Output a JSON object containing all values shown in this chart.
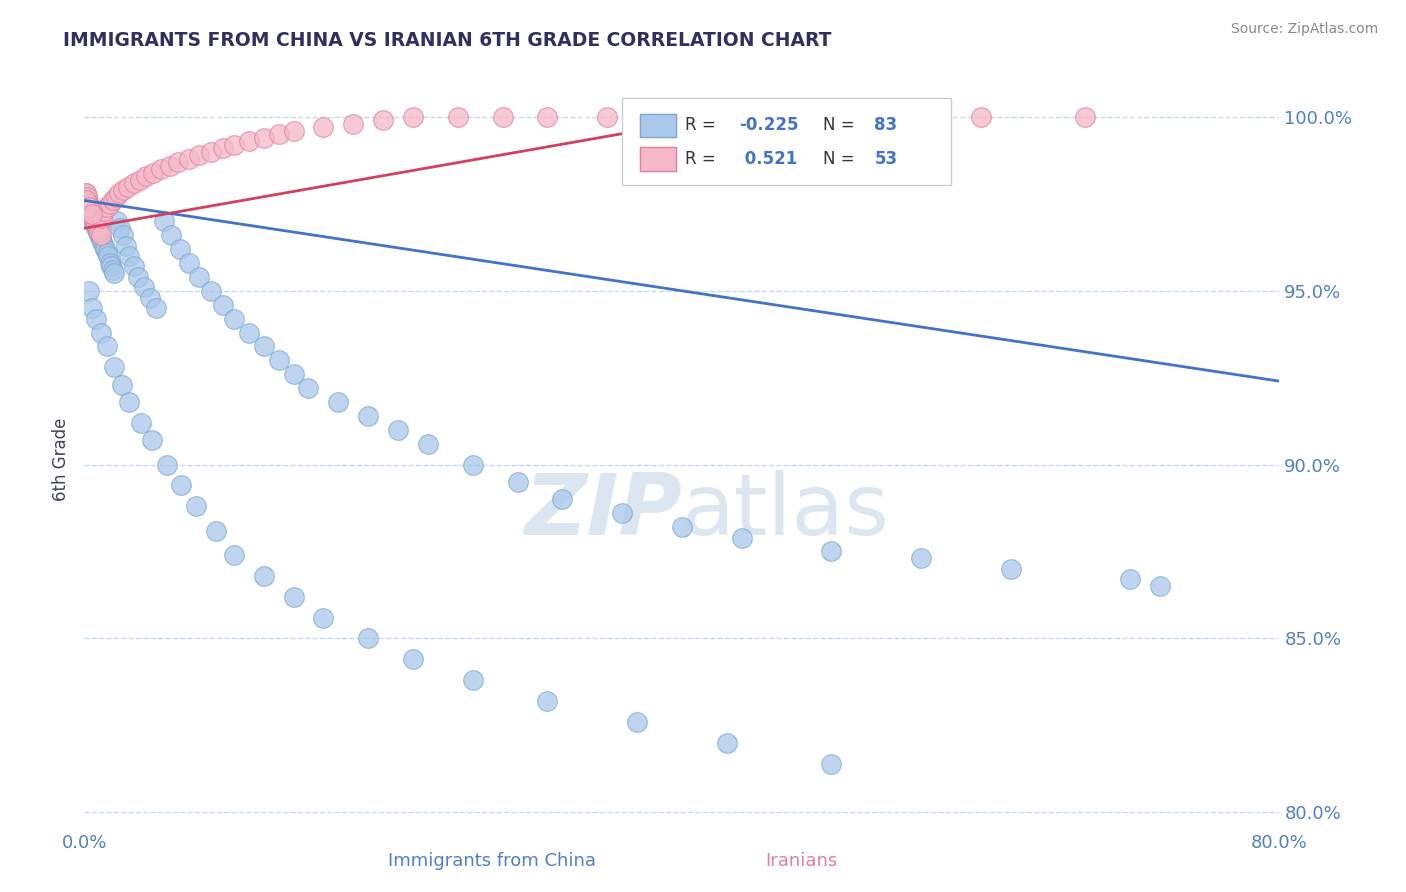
{
  "title": "IMMIGRANTS FROM CHINA VS IRANIAN 6TH GRADE CORRELATION CHART",
  "source": "Source: ZipAtlas.com",
  "xlabel_china": "Immigrants from China",
  "xlabel_iranian": "Iranians",
  "ylabel": "6th Grade",
  "xlim": [
    0.0,
    0.8
  ],
  "ylim": [
    0.795,
    1.008
  ],
  "ytick_labels": [
    "80.0%",
    "85.0%",
    "90.0%",
    "95.0%",
    "100.0%"
  ],
  "yticks": [
    0.8,
    0.85,
    0.9,
    0.95,
    1.0
  ],
  "china_color": "#aac8ea",
  "china_edge_color": "#7aaad0",
  "iran_color": "#f5b8c8",
  "iran_edge_color": "#e080a0",
  "china_R": -0.225,
  "china_N": 83,
  "iran_R": 0.521,
  "iran_N": 53,
  "china_line_color": "#4472c4",
  "iran_line_color": "#d04060",
  "grid_color": "#c8d8ec",
  "title_color": "#303060",
  "axis_label_color": "#5080c0",
  "watermark_color": "#d8e4f0",
  "china_scatter_x": [
    0.001,
    0.002,
    0.003,
    0.004,
    0.005,
    0.006,
    0.007,
    0.008,
    0.009,
    0.01,
    0.011,
    0.012,
    0.013,
    0.014,
    0.015,
    0.016,
    0.017,
    0.018,
    0.019,
    0.02,
    0.022,
    0.024,
    0.026,
    0.028,
    0.03,
    0.033,
    0.036,
    0.04,
    0.044,
    0.048,
    0.053,
    0.058,
    0.064,
    0.07,
    0.077,
    0.085,
    0.093,
    0.1,
    0.11,
    0.12,
    0.13,
    0.14,
    0.15,
    0.17,
    0.19,
    0.21,
    0.23,
    0.26,
    0.29,
    0.32,
    0.36,
    0.4,
    0.44,
    0.5,
    0.56,
    0.62,
    0.7,
    0.72,
    0.003,
    0.005,
    0.008,
    0.011,
    0.015,
    0.02,
    0.025,
    0.03,
    0.038,
    0.045,
    0.055,
    0.065,
    0.075,
    0.088,
    0.1,
    0.12,
    0.14,
    0.16,
    0.19,
    0.22,
    0.26,
    0.31,
    0.37,
    0.43,
    0.5
  ],
  "china_scatter_y": [
    0.978,
    0.977,
    0.974,
    0.972,
    0.971,
    0.97,
    0.969,
    0.968,
    0.967,
    0.966,
    0.965,
    0.964,
    0.963,
    0.962,
    0.961,
    0.96,
    0.958,
    0.957,
    0.956,
    0.955,
    0.97,
    0.968,
    0.966,
    0.963,
    0.96,
    0.957,
    0.954,
    0.951,
    0.948,
    0.945,
    0.97,
    0.966,
    0.962,
    0.958,
    0.954,
    0.95,
    0.946,
    0.942,
    0.938,
    0.934,
    0.93,
    0.926,
    0.922,
    0.918,
    0.914,
    0.91,
    0.906,
    0.9,
    0.895,
    0.89,
    0.886,
    0.882,
    0.879,
    0.875,
    0.873,
    0.87,
    0.867,
    0.865,
    0.95,
    0.945,
    0.942,
    0.938,
    0.934,
    0.928,
    0.923,
    0.918,
    0.912,
    0.907,
    0.9,
    0.894,
    0.888,
    0.881,
    0.874,
    0.868,
    0.862,
    0.856,
    0.85,
    0.844,
    0.838,
    0.832,
    0.826,
    0.82,
    0.814
  ],
  "iran_scatter_x": [
    0.001,
    0.002,
    0.003,
    0.004,
    0.005,
    0.006,
    0.007,
    0.008,
    0.009,
    0.01,
    0.011,
    0.012,
    0.013,
    0.015,
    0.017,
    0.019,
    0.021,
    0.023,
    0.026,
    0.029,
    0.033,
    0.037,
    0.041,
    0.046,
    0.051,
    0.057,
    0.063,
    0.07,
    0.077,
    0.085,
    0.093,
    0.1,
    0.11,
    0.12,
    0.13,
    0.14,
    0.16,
    0.18,
    0.2,
    0.22,
    0.25,
    0.28,
    0.31,
    0.35,
    0.39,
    0.43,
    0.48,
    0.54,
    0.6,
    0.67,
    0.001,
    0.003,
    0.005
  ],
  "iran_scatter_y": [
    0.978,
    0.977,
    0.975,
    0.974,
    0.972,
    0.971,
    0.97,
    0.969,
    0.968,
    0.967,
    0.966,
    0.971,
    0.973,
    0.974,
    0.975,
    0.976,
    0.977,
    0.978,
    0.979,
    0.98,
    0.981,
    0.982,
    0.983,
    0.984,
    0.985,
    0.986,
    0.987,
    0.988,
    0.989,
    0.99,
    0.991,
    0.992,
    0.993,
    0.994,
    0.995,
    0.996,
    0.997,
    0.998,
    0.999,
    1.0,
    1.0,
    1.0,
    1.0,
    1.0,
    1.0,
    1.0,
    1.0,
    1.0,
    1.0,
    1.0,
    0.976,
    0.974,
    0.972
  ],
  "china_trend_x": [
    0.0,
    0.8
  ],
  "china_trend_y": [
    0.976,
    0.924
  ],
  "iran_trend_x": [
    0.0,
    0.45
  ],
  "iran_trend_y": [
    0.968,
    1.002
  ]
}
